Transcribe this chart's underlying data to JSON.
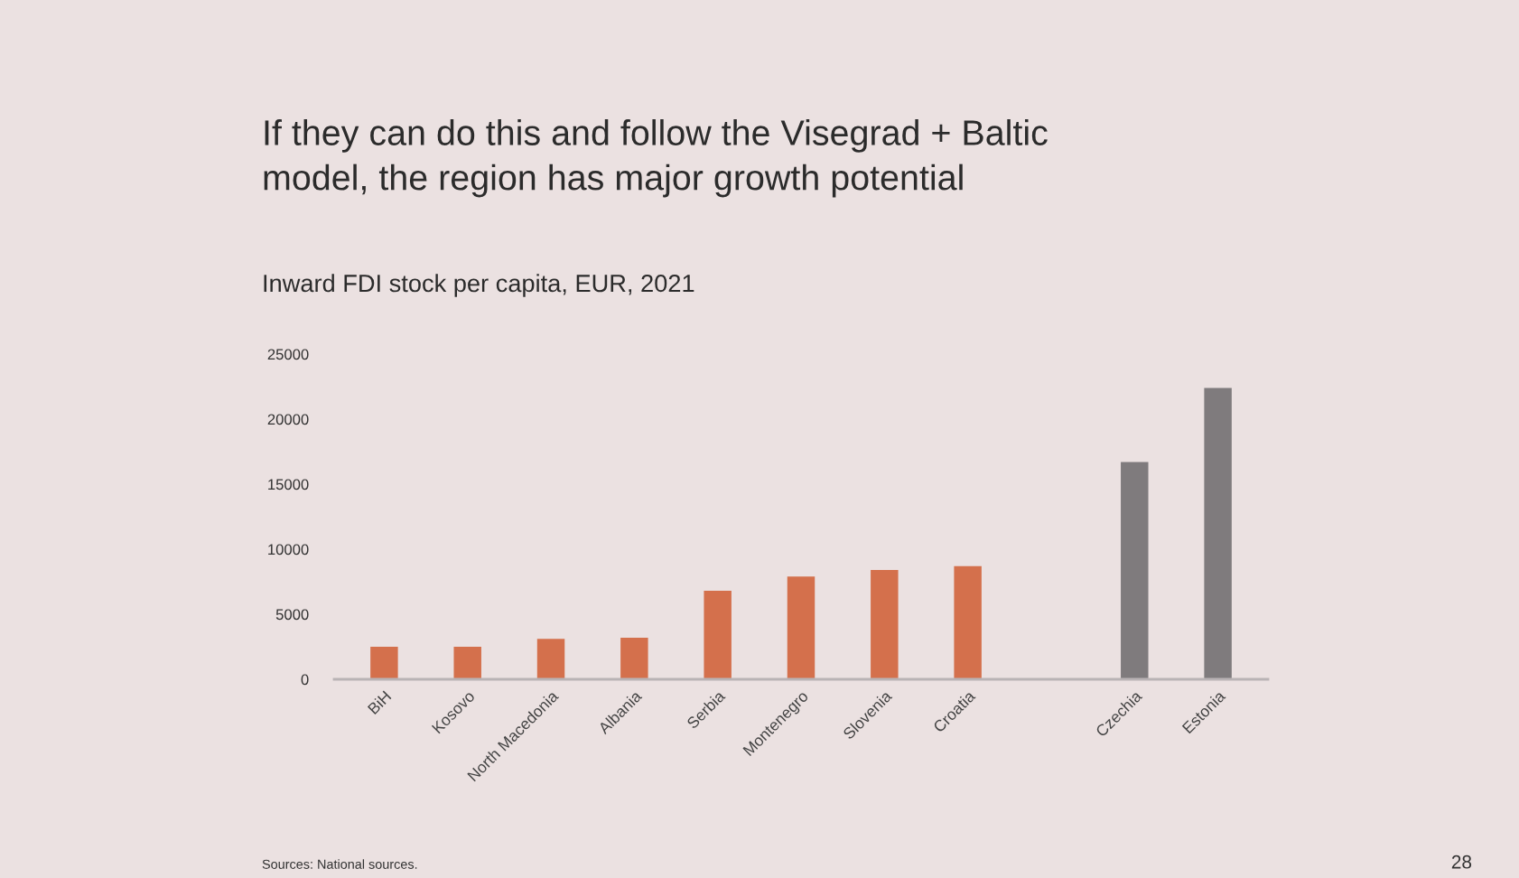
{
  "chart_data": {
    "type": "bar",
    "title": "If they can do this and follow the Visegrad + Baltic model, the region has major growth potential",
    "subtitle": "Inward FDI stock per capita, EUR, 2021",
    "categories": [
      "BiH",
      "Kosovo",
      "North Macedonia",
      "Albania",
      "Serbia",
      "Montenegro",
      "Slovenia",
      "Croatia",
      null,
      "Czechia",
      "Estonia"
    ],
    "values": [
      2500,
      2500,
      3100,
      3200,
      6800,
      7900,
      8400,
      8700,
      null,
      16700,
      22400
    ],
    "colors": [
      "#d4704c",
      "#d4704c",
      "#d4704c",
      "#d4704c",
      "#d4704c",
      "#d4704c",
      "#d4704c",
      "#d4704c",
      null,
      "#7f7b7d",
      "#7f7b7d"
    ],
    "ylim": [
      0,
      25000
    ],
    "yticks": [
      0,
      5000,
      10000,
      15000,
      20000,
      25000
    ],
    "annotations": [
      "Sources: National sources.",
      "28"
    ]
  }
}
